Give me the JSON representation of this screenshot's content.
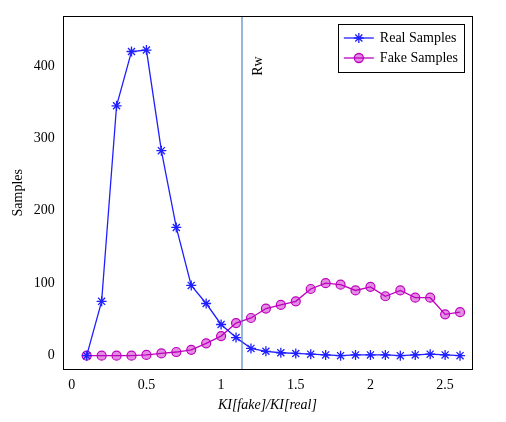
{
  "chart_data": {
    "type": "line",
    "x_label": "KI[fake]/KI[real]",
    "y_label": "Samples",
    "x": [
      0.1,
      0.2,
      0.3,
      0.4,
      0.5,
      0.6,
      0.7,
      0.8,
      0.9,
      1.0,
      1.1,
      1.2,
      1.3,
      1.4,
      1.5,
      1.6,
      1.7,
      1.8,
      1.9,
      2.0,
      2.1,
      2.2,
      2.3,
      2.4,
      2.5,
      2.6
    ],
    "series": [
      {
        "name": "Real Samples",
        "color": "#1f1fff",
        "marker": "star",
        "values": [
          0,
          75,
          345,
          420,
          422,
          283,
          177,
          97,
          72,
          43,
          25,
          10,
          6,
          4,
          3,
          2,
          1,
          0,
          1,
          1,
          1,
          0,
          1,
          2,
          1,
          0
        ]
      },
      {
        "name": "Fake Samples",
        "color": "#bf00bf",
        "marker": "circle",
        "values": [
          0,
          0,
          0,
          0,
          1,
          3,
          5,
          8,
          17,
          27,
          45,
          52,
          65,
          70,
          75,
          92,
          100,
          98,
          90,
          95,
          82,
          90,
          80,
          80,
          57,
          60
        ]
      }
    ],
    "xlim": [
      -0.06,
      2.68
    ],
    "xticks": [
      0,
      0.5,
      1,
      1.5,
      2,
      2.5
    ],
    "ylim": [
      -19,
      469
    ],
    "yticks": [
      0,
      100,
      200,
      300,
      400
    ],
    "annotations": [
      {
        "type": "vline",
        "x": 1.14,
        "label": "Rw"
      }
    ],
    "legend": "upper right",
    "grid": false
  }
}
